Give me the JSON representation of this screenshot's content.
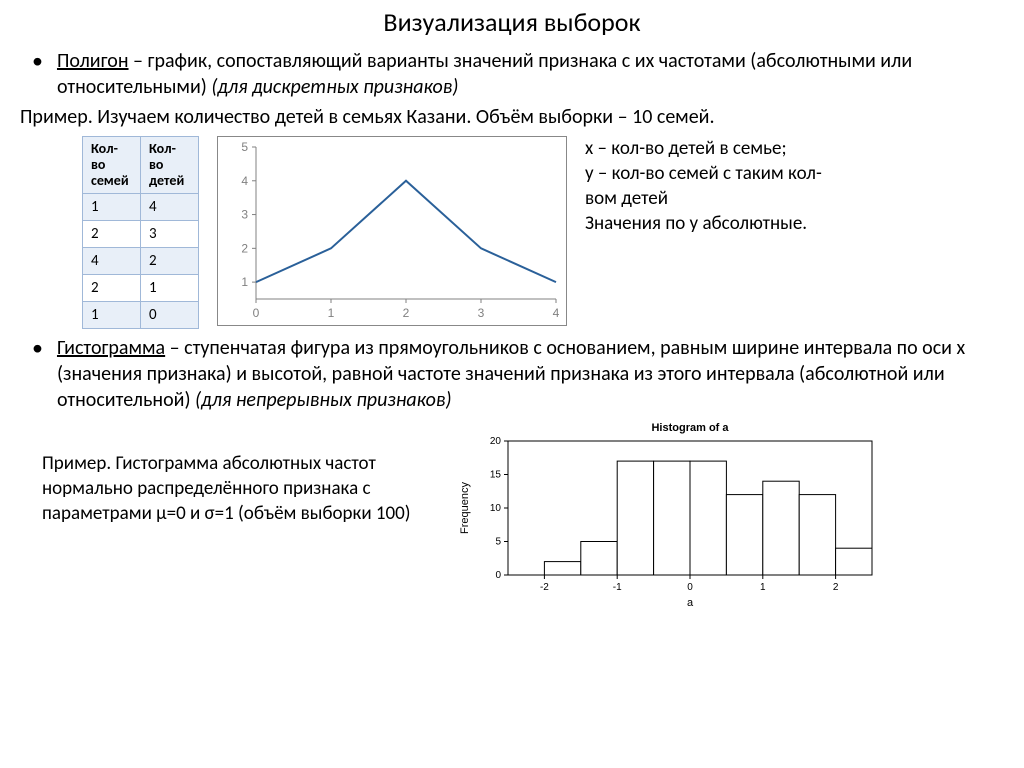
{
  "title": "Визуализация выборок",
  "bullet1": {
    "term": "Полигон",
    "def1": " – график, сопоставляющий варианты значений признака с их частотами (абсолютными или относительными) ",
    "note": "(для дискретных признаков)"
  },
  "example1": "Пример. Изучаем количество детей в семьях Казани. Объём выборки – 10 семей.",
  "table": {
    "header1": "Кол-во семей",
    "header2": "Кол-во детей",
    "rows": [
      {
        "a": "1",
        "b": "4"
      },
      {
        "a": "2",
        "b": "3"
      },
      {
        "a": "4",
        "b": "2"
      },
      {
        "a": "2",
        "b": "1"
      },
      {
        "a": "1",
        "b": "0"
      }
    ]
  },
  "polygon": {
    "xvals": [
      0,
      1,
      2,
      3,
      4
    ],
    "yvals": [
      1,
      2,
      4,
      2,
      1
    ],
    "yticks": [
      1,
      2,
      3,
      4,
      5
    ],
    "xticks": [
      0,
      1,
      2,
      3,
      4
    ],
    "line_color": "#2a6099",
    "axis_color": "#808080",
    "tick_color": "#808080",
    "text_color": "#808080",
    "fontsize": 12
  },
  "legend1": "x – кол-во детей в семье;",
  "legend2": "y – кол-во семей с таким кол-вом детей",
  "legend3": "Значения по y абсолютные.",
  "bullet2": {
    "term": "Гистограмма",
    "def1": " – ступенчатая фигура из прямоугольников с основанием, равным ширине интервала  по оси x (значения признака) и высотой, равной частоте значений признака из этого интервала (абсолютной или относительной) ",
    "note": "(для непрерывных признаков)"
  },
  "hist_example": "Пример. Гистограмма абсолютных частот нормально распределённого признака с параметрами μ=0 и σ=1 (объём выборки 100)",
  "histogram": {
    "title": "Histogram of a",
    "ylabel": "Frequency",
    "xlabel": "a",
    "xvals": [
      -2.5,
      -2,
      -1.5,
      -1,
      -0.5,
      0,
      0.5,
      1,
      1.5,
      2,
      2.5
    ],
    "heights": [
      0,
      2,
      5,
      17,
      17,
      17,
      12,
      14,
      12,
      4,
      0
    ],
    "yticks": [
      0,
      5,
      10,
      15,
      20
    ],
    "xticks": [
      -2,
      -1,
      0,
      1,
      2
    ],
    "bar_stroke": "#000000",
    "bar_fill": "#ffffff",
    "title_fontsize": 11,
    "label_fontsize": 11,
    "tick_fontsize": 10
  }
}
